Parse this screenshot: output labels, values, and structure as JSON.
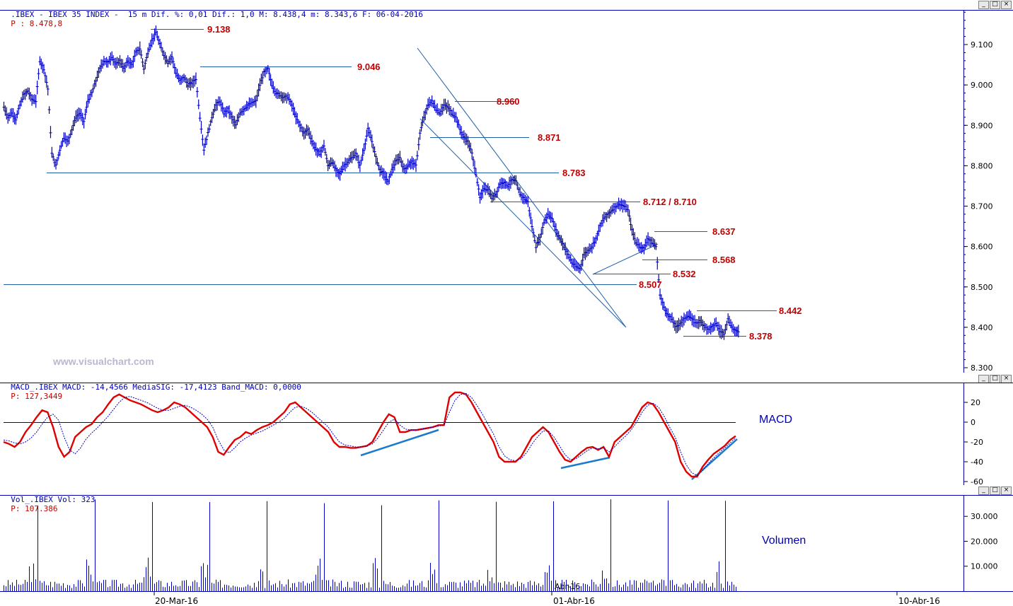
{
  "header": {
    "price": {
      "title": ".IBEX - IBEX 35 INDEX -  15 m Dif. %: 0,01 Dif.: 1,0 M: 8.438,4 m: 8.343,6 F: 06-04-2016",
      "last": "P : 8.478,8"
    },
    "macd": {
      "title": "MACD_.IBEX MACD: -14,4566 MediaSIG: -17,4123 Band_MACD: 0,0000",
      "last": "P: 127,3449"
    },
    "volume": {
      "title": "Vol_.IBEX Vol: 323",
      "last": "P: 107.386"
    }
  },
  "window_buttons": [
    "_",
    "□",
    "×"
  ],
  "watermark": "www.visualchart.com",
  "panel_labels": {
    "macd": "MACD",
    "volume": "Volumen"
  },
  "x_labels": [
    "20-Mar-16",
    "01-Abr-16",
    "10-Abr-16"
  ],
  "x_sub_label": "Abr-16",
  "colors": {
    "price": "#0000c8",
    "lines": "#1f5fa8",
    "levels": "#c00000",
    "macd": "#e00000",
    "signal": "#0000c8",
    "trend": "#1a7acc",
    "volume": "#0000c8"
  },
  "chart_data": [
    {
      "type": "candlestick",
      "interval": "15 m",
      "ylim": [
        8280,
        9180
      ],
      "yticks": [
        "8.300",
        "8.400",
        "8.500",
        "8.600",
        "8.700",
        "8.800",
        "8.900",
        "9.000",
        "9.100"
      ],
      "levels": [
        {
          "label": "9.138",
          "value": 9138
        },
        {
          "label": "9.046",
          "value": 9046
        },
        {
          "label": "8.960",
          "value": 8960
        },
        {
          "label": "8.871",
          "value": 8871
        },
        {
          "label": "8.783",
          "value": 8783
        },
        {
          "label": "8.712 / 8.710",
          "value": 8712
        },
        {
          "label": "8.637",
          "value": 8637
        },
        {
          "label": "8.568",
          "value": 8568
        },
        {
          "label": "8.532",
          "value": 8532
        },
        {
          "label": "8.507",
          "value": 8507
        },
        {
          "label": "8.442",
          "value": 8442
        },
        {
          "label": "8.378",
          "value": 8378
        }
      ],
      "series": [
        {
          "name": "IBEX 35",
          "values": [
            8945,
            8920,
            8930,
            8915,
            8950,
            8975,
            8985,
            8965,
            8960,
            9060,
            9040,
            8990,
            8830,
            8800,
            8840,
            8870,
            8860,
            8890,
            8920,
            8930,
            8910,
            8960,
            8980,
            9010,
            9040,
            9060,
            9055,
            9070,
            9050,
            9060,
            9040,
            9060,
            9050,
            9080,
            9090,
            9040,
            9080,
            9110,
            9130,
            9100,
            9075,
            9055,
            9070,
            9030,
            9010,
            9020,
            9000,
            9005,
            9015,
            8920,
            8840,
            8880,
            8920,
            8950,
            8960,
            8930,
            8940,
            8920,
            8900,
            8930,
            8940,
            8950,
            8955,
            8960,
            9000,
            9030,
            9040,
            9000,
            8980,
            8975,
            8970,
            8970,
            8950,
            8920,
            8900,
            8880,
            8890,
            8860,
            8840,
            8830,
            8850,
            8800,
            8810,
            8790,
            8780,
            8800,
            8810,
            8820,
            8830,
            8800,
            8840,
            8890,
            8860,
            8820,
            8790,
            8780,
            8760,
            8790,
            8810,
            8820,
            8790,
            8800,
            8810,
            8800,
            8880,
            8920,
            8950,
            8960,
            8940,
            8930,
            8950,
            8945,
            8930,
            8920,
            8890,
            8870,
            8860,
            8830,
            8780,
            8720,
            8745,
            8740,
            8720,
            8730,
            8755,
            8760,
            8750,
            8765,
            8760,
            8730,
            8720,
            8710,
            8650,
            8600,
            8620,
            8660,
            8680,
            8670,
            8640,
            8620,
            8600,
            8580,
            8560,
            8550,
            8545,
            8580,
            8590,
            8600,
            8620,
            8650,
            8670,
            8680,
            8690,
            8700,
            8705,
            8700,
            8690,
            8640,
            8610,
            8600,
            8595,
            8620,
            8610,
            8600,
            8480,
            8450,
            8430,
            8420,
            8400,
            8410,
            8420,
            8430,
            8420,
            8410,
            8415,
            8405,
            8395,
            8400,
            8410,
            8390,
            8385,
            8420,
            8400,
            8390
          ]
        }
      ]
    },
    {
      "type": "line",
      "name": "MACD",
      "ylim": [
        -62,
        33
      ],
      "yticks": [
        20,
        0,
        -20,
        -40,
        -60
      ],
      "series": [
        {
          "name": "MACD",
          "values": [
            -20,
            -22,
            -25,
            -20,
            -10,
            -3,
            5,
            12,
            10,
            -5,
            -25,
            -35,
            -30,
            -15,
            -10,
            -5,
            -2,
            5,
            10,
            18,
            25,
            28,
            25,
            22,
            20,
            18,
            15,
            12,
            10,
            12,
            15,
            20,
            18,
            15,
            10,
            5,
            0,
            -5,
            -15,
            -30,
            -33,
            -25,
            -18,
            -15,
            -10,
            -12,
            -8,
            -5,
            -3,
            0,
            5,
            10,
            18,
            20,
            15,
            10,
            5,
            0,
            -5,
            -10,
            -20,
            -25,
            -25,
            -26,
            -26,
            -25,
            -24,
            -20,
            -10,
            0,
            8,
            5,
            -10,
            -10,
            -8,
            -8,
            -7,
            -6,
            -5,
            -3,
            -3,
            25,
            30,
            30,
            28,
            20,
            10,
            0,
            -10,
            -20,
            -35,
            -40,
            -40,
            -40,
            -35,
            -25,
            -15,
            -10,
            -5,
            -10,
            -20,
            -30,
            -38,
            -40,
            -35,
            -30,
            -26,
            -25,
            -28,
            -25,
            -35,
            -20,
            -15,
            -10,
            -5,
            5,
            15,
            20,
            18,
            10,
            0,
            -10,
            -20,
            -40,
            -50,
            -55,
            -55,
            -45,
            -38,
            -32,
            -28,
            -24,
            -18,
            -14
          ]
        },
        {
          "name": "MediaSIG",
          "values": [
            -18,
            -19,
            -21,
            -22,
            -20,
            -16,
            -10,
            -2,
            5,
            8,
            2,
            -15,
            -28,
            -32,
            -26,
            -17,
            -11,
            -6,
            0,
            6,
            13,
            20,
            25,
            26,
            24,
            22,
            20,
            17,
            14,
            12,
            12,
            14,
            16,
            17,
            15,
            12,
            8,
            3,
            -5,
            -18,
            -28,
            -31,
            -26,
            -20,
            -16,
            -13,
            -11,
            -9,
            -6,
            -3,
            0,
            4,
            10,
            15,
            16,
            14,
            10,
            5,
            0,
            -5,
            -13,
            -20,
            -23,
            -24,
            -25,
            -25,
            -24,
            -22,
            -16,
            -8,
            0,
            3,
            -3,
            -7,
            -8,
            -8,
            -7,
            -6,
            -5,
            -4,
            -3,
            10,
            22,
            28,
            29,
            25,
            17,
            8,
            -2,
            -12,
            -25,
            -34,
            -38,
            -39,
            -37,
            -31,
            -22,
            -15,
            -9,
            -9,
            -15,
            -24,
            -33,
            -38,
            -37,
            -33,
            -29,
            -26,
            -27,
            -26,
            -30,
            -25,
            -19,
            -14,
            -8,
            0,
            10,
            17,
            19,
            15,
            6,
            -5,
            -15,
            -30,
            -43,
            -51,
            -54,
            -49,
            -42,
            -36,
            -31,
            -26,
            -21,
            -16
          ]
        }
      ]
    },
    {
      "type": "bar",
      "name": "Volumen",
      "ylim": [
        0,
        38000
      ],
      "yticks": [
        "10.000",
        "20.000",
        "30.000"
      ],
      "series": [
        {
          "name": "Vol",
          "values": [
            1500,
            2000,
            1800,
            2500,
            1200,
            3000,
            2200,
            1600,
            2800,
            1900,
            2400,
            1700,
            2600,
            2100,
            1500,
            3200,
            2000,
            1800,
            2500,
            1700,
            2200,
            2900,
            1600,
            2300,
            1900,
            2700,
            2100,
            1800,
            2400,
            1600,
            2000,
            2600,
            1700,
            2500,
            1900,
            2200,
            1800,
            2800,
            2000,
            1700,
            2300,
            2600,
            36000,
            4000,
            3000,
            5000,
            6000,
            14000,
            8000,
            7000,
            12000,
            5000,
            4000,
            3000,
            2500,
            2000,
            1800
          ]
        }
      ]
    }
  ]
}
